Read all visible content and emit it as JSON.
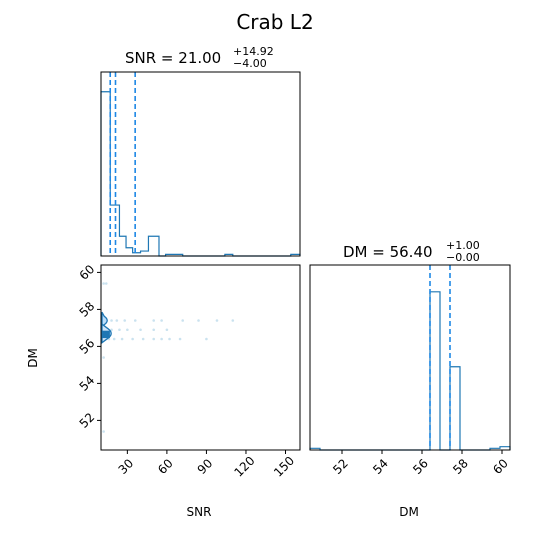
{
  "title": "Crab L2",
  "colors": {
    "line": "#1f77b4",
    "quantile": "#1e88e5",
    "scatter": "#9ecae1",
    "axis": "#000000"
  },
  "chart_data": [
    {
      "type": "histogram",
      "panel": "SNR marginal",
      "title_main": "SNR = 21.00",
      "title_plus": "+14.92",
      "title_minus": "−4.00",
      "xlim": [
        10,
        161
      ],
      "bins": [
        {
          "x0": 10,
          "x1": 17,
          "v": 1.0
        },
        {
          "x0": 17,
          "x1": 24,
          "v": 0.31
        },
        {
          "x0": 24,
          "x1": 29,
          "v": 0.12
        },
        {
          "x0": 29,
          "x1": 34,
          "v": 0.05
        },
        {
          "x0": 34,
          "x1": 40,
          "v": 0.02
        },
        {
          "x0": 40,
          "x1": 46,
          "v": 0.03
        },
        {
          "x0": 46,
          "x1": 54,
          "v": 0.12
        },
        {
          "x0": 54,
          "x1": 59,
          "v": 0.0
        },
        {
          "x0": 59,
          "x1": 72,
          "v": 0.01
        },
        {
          "x0": 72,
          "x1": 104,
          "v": 0.0
        },
        {
          "x0": 104,
          "x1": 110,
          "v": 0.01
        },
        {
          "x0": 110,
          "x1": 154,
          "v": 0.0
        },
        {
          "x0": 154,
          "x1": 161,
          "v": 0.01
        }
      ],
      "ymax": 1.12,
      "quantiles": [
        17,
        21,
        35.92
      ]
    },
    {
      "type": "histogram",
      "panel": "DM marginal",
      "title_main": "DM = 56.40",
      "title_plus": "+1.00",
      "title_minus": "−0.00",
      "xlim": [
        50.4,
        60.4
      ],
      "bins": [
        {
          "x0": 50.4,
          "x1": 50.9,
          "v": 0.01
        },
        {
          "x0": 50.9,
          "x1": 56.4,
          "v": 0.0
        },
        {
          "x0": 56.4,
          "x1": 56.9,
          "v": 0.95
        },
        {
          "x0": 56.9,
          "x1": 57.4,
          "v": 0.0
        },
        {
          "x0": 57.4,
          "x1": 57.9,
          "v": 0.5
        },
        {
          "x0": 57.9,
          "x1": 59.4,
          "v": 0.0
        },
        {
          "x0": 59.4,
          "x1": 59.9,
          "v": 0.01
        },
        {
          "x0": 59.9,
          "x1": 60.4,
          "v": 0.02
        }
      ],
      "ymax": 1.0,
      "quantiles": [
        56.4,
        56.4,
        57.4
      ],
      "xlabel": "DM",
      "xticks": [
        52,
        54,
        56,
        58,
        60
      ]
    },
    {
      "type": "scatter",
      "panel": "SNR vs DM joint",
      "xlabel": "SNR",
      "ylabel": "DM",
      "xlim": [
        10,
        161
      ],
      "ylim": [
        50.4,
        60.4
      ],
      "xticks": [
        30,
        60,
        90,
        120,
        150
      ],
      "yticks": [
        52,
        54,
        56,
        58,
        60
      ],
      "points": [
        [
          12,
          59.4
        ],
        [
          14,
          59.4
        ],
        [
          12,
          57.4
        ],
        [
          14,
          57.4
        ],
        [
          18,
          57.4
        ],
        [
          22,
          57.4
        ],
        [
          28,
          57.4
        ],
        [
          36,
          57.4
        ],
        [
          50,
          57.4
        ],
        [
          56,
          57.4
        ],
        [
          72,
          57.4
        ],
        [
          84,
          57.4
        ],
        [
          98,
          57.4
        ],
        [
          110,
          57.4
        ],
        [
          12,
          56.9
        ],
        [
          18,
          56.9
        ],
        [
          24,
          56.9
        ],
        [
          30,
          56.9
        ],
        [
          40,
          56.9
        ],
        [
          50,
          56.9
        ],
        [
          60,
          56.9
        ],
        [
          12,
          56.4
        ],
        [
          16,
          56.4
        ],
        [
          20,
          56.4
        ],
        [
          26,
          56.4
        ],
        [
          34,
          56.4
        ],
        [
          42,
          56.4
        ],
        [
          50,
          56.4
        ],
        [
          56,
          56.4
        ],
        [
          62,
          56.4
        ],
        [
          70,
          56.4
        ],
        [
          90,
          56.4
        ],
        [
          12,
          55.4
        ],
        [
          12,
          51.4
        ]
      ],
      "contours": [
        {
          "dm": 57.4,
          "snr_max": 17,
          "half_height": 0.45
        },
        {
          "dm": 56.7,
          "snr_max": 20,
          "half_height": 0.5
        }
      ]
    }
  ]
}
